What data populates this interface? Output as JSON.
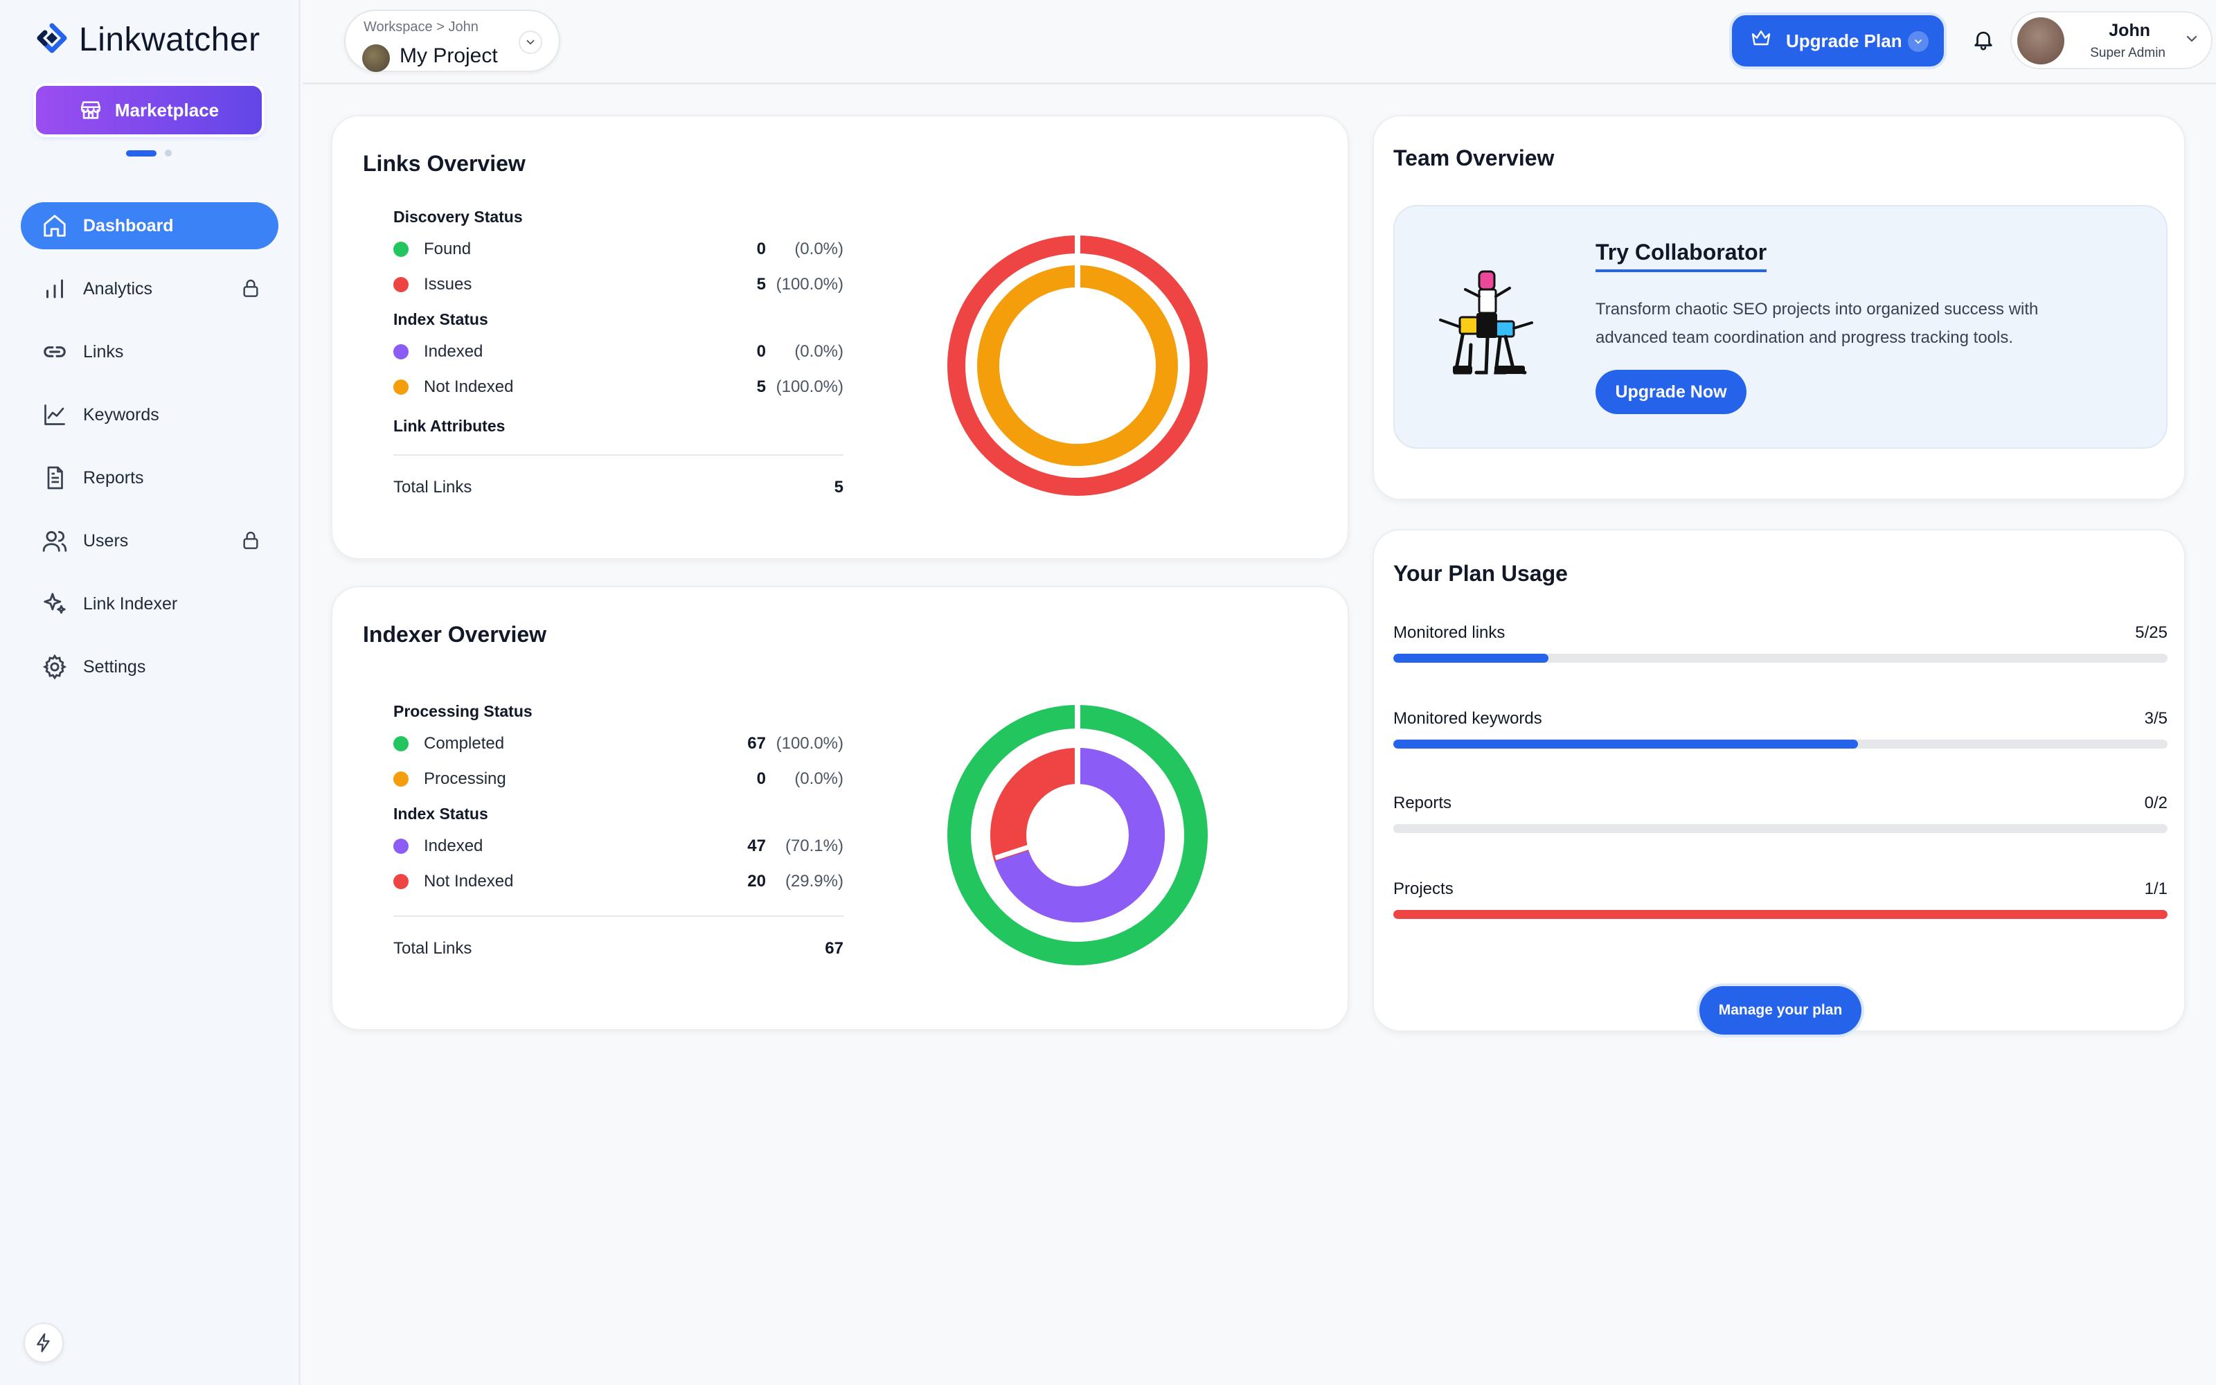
{
  "app": {
    "name": "Linkwatcher"
  },
  "sidebar": {
    "marketplace_label": "Marketplace",
    "items": [
      {
        "label": "Dashboard",
        "icon": "home-icon",
        "active": true,
        "locked": false
      },
      {
        "label": "Analytics",
        "icon": "bar-chart-icon",
        "active": false,
        "locked": true
      },
      {
        "label": "Links",
        "icon": "link-icon",
        "active": false,
        "locked": false
      },
      {
        "label": "Keywords",
        "icon": "line-chart-icon",
        "active": false,
        "locked": false
      },
      {
        "label": "Reports",
        "icon": "document-icon",
        "active": false,
        "locked": false
      },
      {
        "label": "Users",
        "icon": "users-icon",
        "active": false,
        "locked": true
      },
      {
        "label": "Link Indexer",
        "icon": "sparkle-icon",
        "active": false,
        "locked": false
      },
      {
        "label": "Settings",
        "icon": "gear-icon",
        "active": false,
        "locked": false
      }
    ]
  },
  "header": {
    "breadcrumb": "Workspace > John",
    "project_name": "My Project",
    "upgrade_label": "Upgrade Plan",
    "user_name": "John",
    "user_role": "Super Admin"
  },
  "links_overview": {
    "title": "Links Overview",
    "discovery_title": "Discovery Status",
    "discovery": [
      {
        "label": "Found",
        "value": "0",
        "pct": "(0.0%)",
        "color": "#22c55e"
      },
      {
        "label": "Issues",
        "value": "5",
        "pct": "(100.0%)",
        "color": "#ef4444"
      }
    ],
    "index_title": "Index Status",
    "index": [
      {
        "label": "Indexed",
        "value": "0",
        "pct": "(0.0%)",
        "color": "#8b5cf6"
      },
      {
        "label": "Not Indexed",
        "value": "5",
        "pct": "(100.0%)",
        "color": "#f59e0b"
      }
    ],
    "attributes_title": "Link Attributes",
    "total_label": "Total Links",
    "total_value": "5"
  },
  "indexer_overview": {
    "title": "Indexer Overview",
    "processing_title": "Processing Status",
    "processing": [
      {
        "label": "Completed",
        "value": "67",
        "pct": "(100.0%)",
        "color": "#22c55e"
      },
      {
        "label": "Processing",
        "value": "0",
        "pct": "(0.0%)",
        "color": "#f59e0b"
      }
    ],
    "index_title": "Index Status",
    "index": [
      {
        "label": "Indexed",
        "value": "47",
        "pct": "(70.1%)",
        "color": "#8b5cf6"
      },
      {
        "label": "Not Indexed",
        "value": "20",
        "pct": "(29.9%)",
        "color": "#ef4444"
      }
    ],
    "total_label": "Total Links",
    "total_value": "67"
  },
  "team_overview": {
    "title": "Team Overview",
    "promo_title": "Try Collaborator",
    "promo_desc": "Transform chaotic SEO projects into organized success with advanced team coordination and progress tracking tools.",
    "promo_button": "Upgrade Now"
  },
  "plan_usage": {
    "title": "Your Plan Usage",
    "items": [
      {
        "label": "Monitored links",
        "value": "5/25",
        "used": 5,
        "limit": 25,
        "color": "#2563eb"
      },
      {
        "label": "Monitored keywords",
        "value": "3/5",
        "used": 3,
        "limit": 5,
        "color": "#2563eb"
      },
      {
        "label": "Reports",
        "value": "0/2",
        "used": 0,
        "limit": 2,
        "color": "#2563eb"
      },
      {
        "label": "Projects",
        "value": "1/1",
        "used": 1,
        "limit": 1,
        "color": "#ef4444"
      }
    ],
    "manage_label": "Manage your plan"
  }
}
